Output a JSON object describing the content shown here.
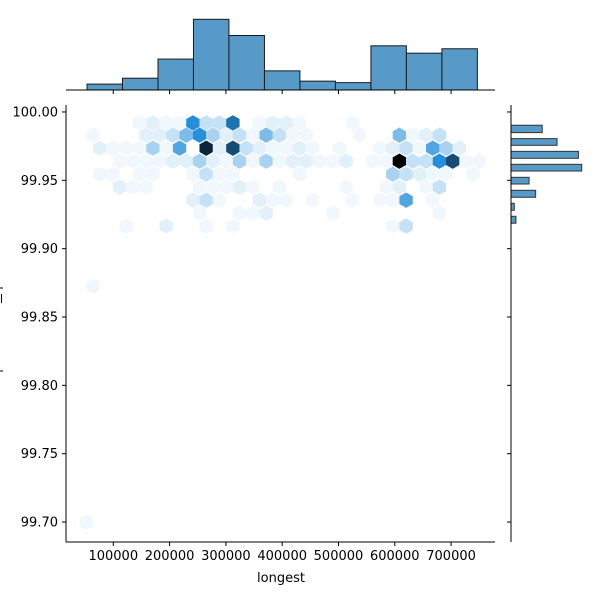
{
  "chart_data": {
    "type": "hexbin-jointplot",
    "xlabel": "longest",
    "ylabel": "",
    "xlim": [
      16000,
      778000
    ],
    "ylim": [
      99.6854,
      100.0051
    ],
    "xticks": [
      100000,
      200000,
      300000,
      400000,
      500000,
      600000,
      700000
    ],
    "xtick_labels": [
      "100000",
      "200000",
      "300000",
      "400000",
      "500000",
      "600000",
      "700000"
    ],
    "yticks": [
      99.7,
      99.75,
      99.8,
      99.85,
      99.9,
      99.95,
      100.0
    ],
    "ytick_labels": [
      "99.70",
      "99.75",
      "99.80",
      "99.85",
      "99.90",
      "99.95",
      "100.00"
    ],
    "grid": false,
    "colors": {
      "hex_hue": "#1f77b4",
      "hist_fill": "#5799c7",
      "hist_edge": "#1a1a1a"
    },
    "hexbins": [
      {
        "y": 99.992,
        "cells": [
          [
            146700,
            1
          ],
          [
            170400,
            2
          ],
          [
            194000,
            1
          ],
          [
            217700,
            1
          ],
          [
            241400,
            15
          ],
          [
            265000,
            4
          ],
          [
            288700,
            4
          ],
          [
            312400,
            18
          ],
          [
            359700,
            1
          ],
          [
            383400,
            2
          ],
          [
            407100,
            2
          ],
          [
            430700,
            1
          ],
          [
            525400,
            1
          ]
        ]
      },
      {
        "y": 99.983,
        "cells": [
          [
            63800,
            1
          ],
          [
            158500,
            2
          ],
          [
            182200,
            2
          ],
          [
            205900,
            4
          ],
          [
            229500,
            9
          ],
          [
            253200,
            15
          ],
          [
            276900,
            6
          ],
          [
            300500,
            2
          ],
          [
            324200,
            4
          ],
          [
            347900,
            1
          ],
          [
            371500,
            9
          ],
          [
            395200,
            4
          ],
          [
            418900,
            1
          ],
          [
            442600,
            1
          ],
          [
            537200,
            1
          ],
          [
            608200,
            9
          ],
          [
            631900,
            1
          ],
          [
            655600,
            2
          ],
          [
            679300,
            4
          ]
        ]
      },
      {
        "y": 99.9735,
        "cells": [
          [
            75700,
            2
          ],
          [
            99300,
            1
          ],
          [
            123000,
            1
          ],
          [
            146700,
            1
          ],
          [
            170400,
            6
          ],
          [
            194000,
            1
          ],
          [
            217700,
            12
          ],
          [
            265000,
            26
          ],
          [
            288700,
            2
          ],
          [
            312400,
            22
          ],
          [
            336000,
            4
          ],
          [
            359700,
            2
          ],
          [
            383400,
            1
          ],
          [
            407100,
            1
          ],
          [
            430700,
            2
          ],
          [
            454400,
            1
          ],
          [
            501700,
            1
          ],
          [
            572700,
            1
          ],
          [
            596400,
            2
          ],
          [
            620100,
            4
          ],
          [
            643800,
            1
          ],
          [
            667400,
            12
          ],
          [
            691100,
            6
          ],
          [
            714800,
            2
          ]
        ]
      },
      {
        "y": 99.964,
        "cells": [
          [
            111200,
            1
          ],
          [
            134800,
            1
          ],
          [
            158500,
            1
          ],
          [
            182200,
            1
          ],
          [
            205900,
            2
          ],
          [
            229500,
            2
          ],
          [
            253200,
            6
          ],
          [
            276900,
            2
          ],
          [
            300500,
            1
          ],
          [
            324200,
            6
          ],
          [
            347900,
            1
          ],
          [
            371500,
            6
          ],
          [
            395200,
            1
          ],
          [
            418900,
            2
          ],
          [
            442600,
            2
          ],
          [
            466200,
            1
          ],
          [
            489900,
            1
          ],
          [
            513600,
            2
          ],
          [
            560900,
            1
          ],
          [
            584600,
            1
          ],
          [
            608200,
            30
          ],
          [
            631900,
            4
          ],
          [
            655600,
            4
          ],
          [
            679300,
            15
          ],
          [
            702900,
            22
          ],
          [
            726600,
            1
          ],
          [
            750300,
            1
          ]
        ]
      },
      {
        "y": 99.9545,
        "cells": [
          [
            75700,
            1
          ],
          [
            99300,
            1
          ],
          [
            146700,
            1
          ],
          [
            170400,
            1
          ],
          [
            241400,
            1
          ],
          [
            265000,
            4
          ],
          [
            288700,
            1
          ],
          [
            312400,
            1
          ],
          [
            430700,
            1
          ],
          [
            596400,
            6
          ],
          [
            620100,
            4
          ],
          [
            643800,
            2
          ],
          [
            667400,
            1
          ],
          [
            691100,
            1
          ],
          [
            738400,
            1
          ]
        ]
      },
      {
        "y": 99.945,
        "cells": [
          [
            111200,
            2
          ],
          [
            134800,
            1
          ],
          [
            158500,
            1
          ],
          [
            253200,
            1
          ],
          [
            276900,
            1
          ],
          [
            300500,
            1
          ],
          [
            324200,
            2
          ],
          [
            347900,
            1
          ],
          [
            395200,
            1
          ],
          [
            513600,
            1
          ],
          [
            584600,
            1
          ],
          [
            608200,
            2
          ],
          [
            655600,
            1
          ],
          [
            679300,
            4
          ]
        ]
      },
      {
        "y": 99.9355,
        "cells": [
          [
            241400,
            2
          ],
          [
            265000,
            4
          ],
          [
            288700,
            1
          ],
          [
            359700,
            2
          ],
          [
            383400,
            1
          ],
          [
            407100,
            1
          ],
          [
            454400,
            1
          ],
          [
            525400,
            1
          ],
          [
            572700,
            1
          ],
          [
            596400,
            1
          ],
          [
            620100,
            12
          ],
          [
            667400,
            1
          ]
        ]
      },
      {
        "y": 99.926,
        "cells": [
          [
            253200,
            1
          ],
          [
            324200,
            1
          ],
          [
            347900,
            1
          ],
          [
            371500,
            2
          ],
          [
            489900,
            1
          ],
          [
            679300,
            1
          ]
        ]
      },
      {
        "y": 99.9165,
        "cells": [
          [
            123000,
            1
          ],
          [
            194000,
            2
          ],
          [
            265000,
            1
          ],
          [
            312400,
            1
          ],
          [
            596400,
            1
          ],
          [
            620100,
            4
          ]
        ]
      },
      {
        "y": 99.8725,
        "cells": [
          [
            63800,
            1
          ]
        ]
      },
      {
        "y": 99.7,
        "cells": [
          [
            52000,
            1
          ]
        ]
      }
    ],
    "x_marginal_hist": {
      "bin_edges": [
        53300,
        116300,
        179400,
        242400,
        305400,
        368500,
        431500,
        494600,
        557600,
        620600,
        683700,
        746700
      ],
      "counts": [
        4,
        8,
        21,
        48,
        37,
        13,
        6,
        5,
        30,
        25,
        28
      ]
    },
    "y_marginal_hist": {
      "bins": [
        [
          99.9849,
          99.9903
        ],
        [
          99.9756,
          99.9805
        ],
        [
          99.9661,
          99.9712
        ],
        [
          99.9568,
          99.9617
        ],
        [
          99.9473,
          99.9522
        ],
        [
          99.9376,
          99.9427
        ],
        [
          99.9281,
          99.9332
        ],
        [
          99.9186,
          99.9237
        ]
      ],
      "counts": [
        19,
        28,
        41,
        43,
        11,
        15,
        2,
        3
      ]
    }
  }
}
